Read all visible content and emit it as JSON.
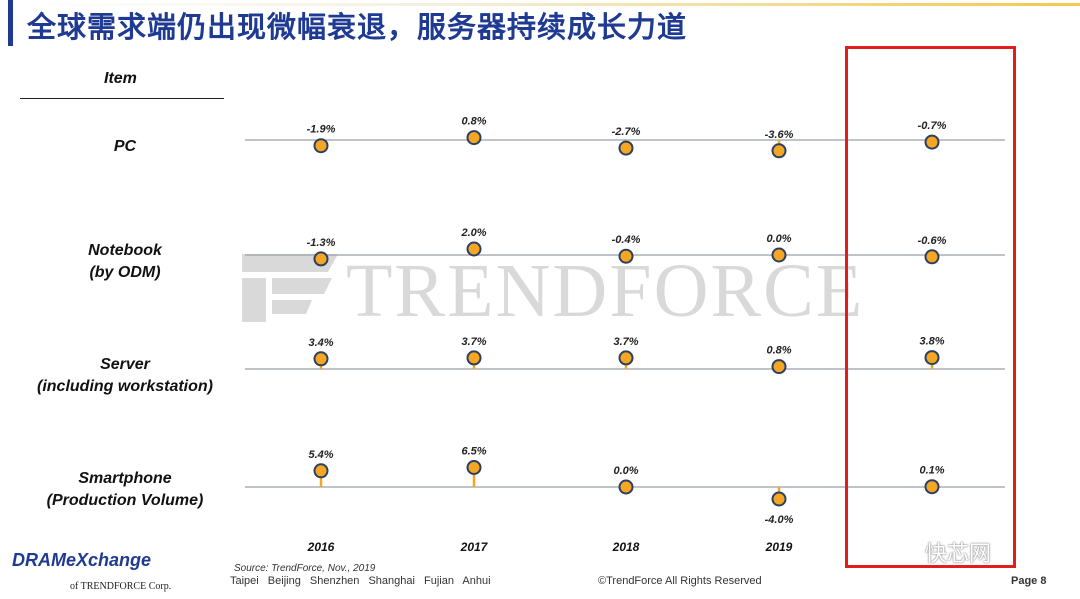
{
  "title": "全球需求端仍出现微幅衰退，服务器持续成长力道",
  "item_header": "Item",
  "rows": [
    {
      "label_line1": "PC",
      "label_line2": ""
    },
    {
      "label_line1": "Notebook",
      "label_line2": "(by ODM)"
    },
    {
      "label_line1": "Server",
      "label_line2": "(including workstation)"
    },
    {
      "label_line1": "Smartphone",
      "label_line2": "(Production Volume)"
    }
  ],
  "chart_data": {
    "type": "scatter",
    "categories": [
      "2016",
      "2017",
      "2018",
      "2019",
      ""
    ],
    "series": [
      {
        "name": "PC",
        "values": [
          -1.9,
          0.8,
          -2.7,
          -3.6,
          -0.7
        ],
        "labels": [
          "-1.9%",
          "0.8%",
          "-2.7%",
          "-3.6%",
          "-0.7%"
        ]
      },
      {
        "name": "Notebook (by ODM)",
        "values": [
          -1.3,
          2.0,
          -0.4,
          0.0,
          -0.6
        ],
        "labels": [
          "-1.3%",
          "2.0%",
          "-0.4%",
          "0.0%",
          "-0.6%"
        ]
      },
      {
        "name": "Server (including workstation)",
        "values": [
          3.4,
          3.7,
          3.7,
          0.8,
          3.8
        ],
        "labels": [
          "3.4%",
          "3.7%",
          "3.7%",
          "0.8%",
          "3.8%"
        ]
      },
      {
        "name": "Smartphone (Production Volume)",
        "values": [
          5.4,
          6.5,
          0.0,
          -4.0,
          0.1
        ],
        "labels": [
          "5.4%",
          "6.5%",
          "0.0%",
          "-4.0%",
          "0.1%"
        ]
      }
    ],
    "colors": {
      "marker_fill": "#f5a623",
      "marker_stroke": "#2b3f63",
      "stem": "#f5a623",
      "baseline": "#9aa0a6",
      "highlight": "#e01e1e"
    }
  },
  "watermark": {
    "text": "TRENDFORCE"
  },
  "footer": {
    "logo": "DRAMeXchange",
    "logo_sub": "of TRENDFORCE Corp.",
    "source": "Source: TrendForce, Nov., 2019",
    "cities": "Taipei Beijing Shenzhen Shanghai Fujian Anhui",
    "copyright": "©TrendForce All Rights Reserved",
    "page": "Page 8",
    "wechat_mark": "快芯网"
  }
}
